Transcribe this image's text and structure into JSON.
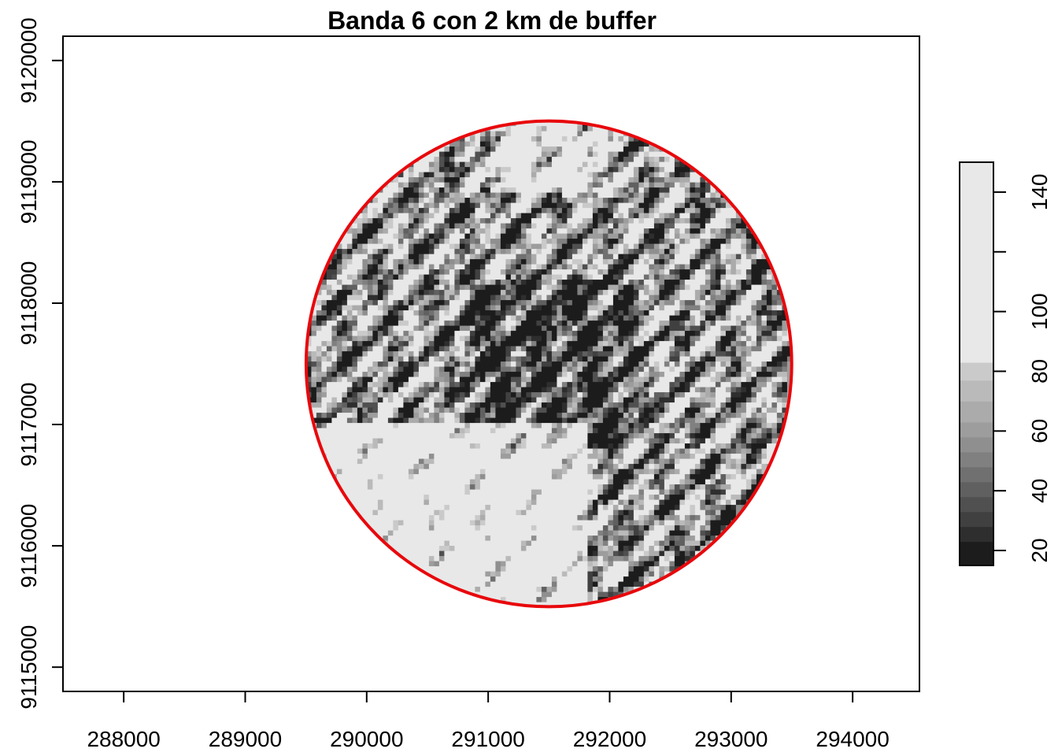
{
  "chart_data": {
    "type": "heatmap",
    "title": "Banda 6 con 2 km de buffer",
    "xlabel": "",
    "ylabel": "",
    "xlim": [
      287500,
      294550
    ],
    "ylim": [
      9114800,
      9120200
    ],
    "x_ticks": [
      288000,
      289000,
      290000,
      291000,
      292000,
      293000,
      294000
    ],
    "x_tick_labels": [
      "288000",
      "289000",
      "290000",
      "291000",
      "292000",
      "293000",
      "294000"
    ],
    "y_ticks": [
      9115000,
      9116000,
      9117000,
      9118000,
      9119000,
      9120000
    ],
    "y_tick_labels": [
      "9115000",
      "9116000",
      "9117000",
      "9118000",
      "9119000",
      "9120000"
    ],
    "buffer": {
      "center_x": 291500,
      "center_y": 9117500,
      "radius_m": 2000,
      "outline_color": "#e8080c"
    },
    "value_range": [
      15,
      150
    ],
    "colorbar": {
      "ticks": [
        20,
        40,
        60,
        80,
        100,
        140
      ],
      "tick_labels": [
        "20",
        "40",
        "60",
        "80",
        "100",
        "140"
      ],
      "breaks": [
        15,
        23,
        28,
        33,
        38,
        43,
        48,
        53,
        58,
        63,
        70,
        77,
        83,
        150
      ],
      "colors": [
        "#1c1c1c",
        "#2e2e2e",
        "#404040",
        "#505050",
        "#606060",
        "#707070",
        "#808080",
        "#8f8f8f",
        "#9d9d9d",
        "#ababab",
        "#bababa",
        "#cacaca",
        "#e8e8e8"
      ]
    },
    "raster_description_regions": [
      {
        "region": "south-west",
        "value": 140
      },
      {
        "region": "north-center",
        "value": 140
      },
      {
        "region": "center",
        "value": 35
      }
    ],
    "grid": false,
    "legend": "right"
  }
}
